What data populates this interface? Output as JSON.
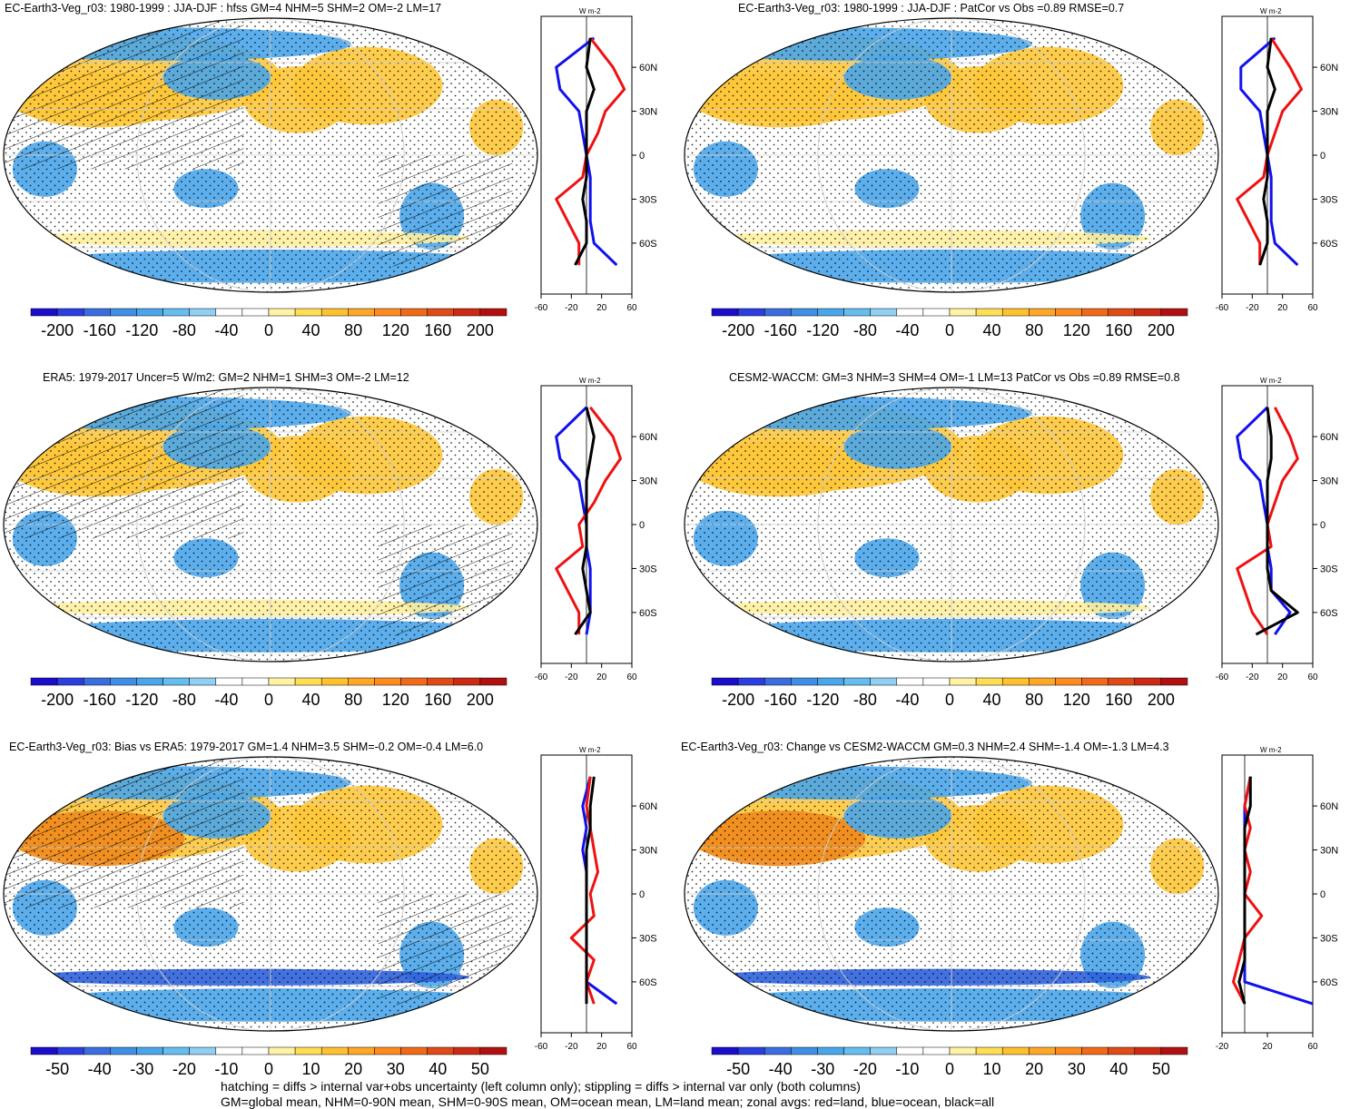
{
  "footer": {
    "line1": "hatching = diffs > internal var+obs uncertainty (left column only); stippling = diffs > internal var only (both columns)",
    "line2": "GM=global mean, NHM=0-90N mean, SHM=0-90S mean, OM=ocean mean, LM=land mean; zonal avgs: red=land, blue=ocean, black=all"
  },
  "profile_units": "W m-2",
  "lat_ticks": [
    "60N",
    "30N",
    "0",
    "30S",
    "60S"
  ],
  "colorbar_large": [
    "-200",
    "-160",
    "-120",
    "-80",
    "-40",
    "0",
    "40",
    "80",
    "120",
    "160",
    "200"
  ],
  "colorbar_small": [
    "-50",
    "-40",
    "-30",
    "-20",
    "-10",
    "0",
    "10",
    "20",
    "30",
    "40",
    "50"
  ],
  "colorbar_colors": [
    "#1a0dcc",
    "#2b3ee0",
    "#3a6ee0",
    "#3f8fe6",
    "#4aa6ea",
    "#66bdef",
    "#8fd0f3",
    "#ffffff",
    "#ffffff",
    "#fff3a6",
    "#ffdd55",
    "#ffc22e",
    "#ffa726",
    "#ff8a1f",
    "#f06a1a",
    "#e04a16",
    "#cc2a12",
    "#b21010"
  ],
  "colors": {
    "land": "#ee1111",
    "ocean": "#1111ee",
    "all": "#000000",
    "neg": "#4aa6ea",
    "pos": "#ffc83a",
    "posStrong": "#f08a1c",
    "negStrong": "#2f62dd"
  },
  "panels": [
    {
      "title": "EC-Earth3-Veg_r03: 1980-1999 : JJA-DJF : hfss GM=4 NHM=5 SHM=2 OM=-2 LM=17",
      "xticks": [
        "-60",
        "-20",
        "20",
        "60"
      ],
      "cbar": "large",
      "hatch": true,
      "level": 2
    },
    {
      "title": "EC-Earth3-Veg_r03: 1980-1999 : JJA-DJF : PatCor vs Obs =0.89 RMSE=0.7",
      "xticks": [
        "-60",
        "-20",
        "20",
        "60"
      ],
      "cbar": "large",
      "hatch": false,
      "level": 2
    },
    {
      "title": "ERA5: 1979-2017 Uncer=5 W/m2: GM=2 NHM=1 SHM=3 OM=-2 LM=12",
      "xticks": [
        "-60",
        "-20",
        "20",
        "60"
      ],
      "cbar": "large",
      "hatch": true,
      "level": 2
    },
    {
      "title": "CESM2-WACCM: GM=3 NHM=3 SHM=4 OM=-1 LM=13 PatCor vs Obs =0.89 RMSE=0.8",
      "xticks": [
        "-60",
        "-20",
        "20",
        "60"
      ],
      "cbar": "large",
      "hatch": false,
      "level": 2
    },
    {
      "title": "EC-Earth3-Veg_r03: Bias vs ERA5: 1979-2017 GM=1.4 NHM=3.5 SHM=-0.2 OM=-0.4 LM=6.0",
      "xticks": [
        "-60",
        "-20",
        "20",
        "60"
      ],
      "cbar": "small",
      "hatch": true,
      "level": 3
    },
    {
      "title": "EC-Earth3-Veg_r03: Change vs CESM2-WACCM GM=0.3 NHM=2.4 SHM=-1.4 OM=-1.3 LM=4.3",
      "xticks": [
        "-20",
        "20",
        "60"
      ],
      "cbar": "small",
      "hatch": false,
      "level": 3
    }
  ],
  "chart_data": [
    {
      "type": "heatmap",
      "title": "EC-Earth3-Veg_r03: 1980-1999 : JJA-DJF : hfss GM=4 NHM=5 SHM=2 OM=-2 LM=17",
      "variable": "hfss JJA-DJF",
      "units": "W m-2",
      "colorbar_range": [
        -200,
        200
      ],
      "global_mean": 4,
      "nhm": 5,
      "shm": 2,
      "om": -2,
      "lm": 17,
      "zonal_mean_profile": {
        "xlim": [
          -60,
          60
        ],
        "lat": [
          80,
          60,
          45,
          30,
          15,
          0,
          -15,
          -30,
          -45,
          -60,
          -75
        ],
        "land": [
          5,
          35,
          50,
          25,
          15,
          0,
          -5,
          -40,
          null,
          -10,
          -10
        ],
        "ocean": [
          10,
          -40,
          -35,
          -10,
          -5,
          0,
          5,
          5,
          5,
          10,
          40
        ],
        "all": [
          5,
          0,
          10,
          0,
          0,
          0,
          0,
          -5,
          0,
          0,
          -15
        ]
      }
    },
    {
      "type": "heatmap",
      "title": "EC-Earth3-Veg_r03: 1980-1999 : JJA-DJF : PatCor vs Obs =0.89 RMSE=0.7",
      "pattern_correlation": 0.89,
      "rmse": 0.7,
      "colorbar_range": [
        -200,
        200
      ],
      "zonal_mean_profile": {
        "xlim": [
          -60,
          60
        ],
        "lat": [
          80,
          60,
          45,
          30,
          15,
          0,
          -15,
          -30,
          -45,
          -60,
          -75
        ],
        "land": [
          5,
          30,
          45,
          20,
          10,
          0,
          -5,
          -40,
          null,
          -10,
          -10
        ],
        "ocean": [
          10,
          -35,
          -35,
          -10,
          -5,
          0,
          5,
          5,
          5,
          10,
          40
        ],
        "all": [
          5,
          0,
          10,
          0,
          0,
          0,
          0,
          -5,
          0,
          0,
          -10
        ]
      }
    },
    {
      "type": "heatmap",
      "title": "ERA5: 1979-2017 Uncer=5 W/m2: GM=2 NHM=1 SHM=3 OM=-2 LM=12",
      "uncertainty": "5 W/m2",
      "global_mean": 2,
      "nhm": 1,
      "shm": 3,
      "om": -2,
      "lm": 12,
      "colorbar_range": [
        -200,
        200
      ],
      "zonal_mean_profile": {
        "xlim": [
          -60,
          60
        ],
        "lat": [
          80,
          60,
          45,
          30,
          15,
          0,
          -15,
          -30,
          -45,
          -60,
          -75
        ],
        "land": [
          5,
          35,
          45,
          25,
          10,
          -10,
          -5,
          -40,
          null,
          -10,
          -10
        ],
        "ocean": [
          0,
          -40,
          -35,
          -10,
          -5,
          0,
          0,
          5,
          5,
          5,
          0
        ],
        "all": [
          0,
          10,
          5,
          0,
          0,
          0,
          0,
          -5,
          0,
          5,
          -15
        ]
      }
    },
    {
      "type": "heatmap",
      "title": "CESM2-WACCM: GM=3 NHM=3 SHM=4 OM=-1 LM=13 PatCor vs Obs =0.89 RMSE=0.8",
      "global_mean": 3,
      "nhm": 3,
      "shm": 4,
      "om": -1,
      "lm": 13,
      "pattern_correlation": 0.89,
      "rmse": 0.8,
      "colorbar_range": [
        -200,
        200
      ],
      "zonal_mean_profile": {
        "xlim": [
          -60,
          60
        ],
        "lat": [
          80,
          60,
          45,
          30,
          15,
          0,
          -15,
          -30,
          -45,
          -60,
          -75
        ],
        "land": [
          10,
          30,
          40,
          20,
          10,
          0,
          5,
          -40,
          null,
          -20,
          0
        ],
        "ocean": [
          0,
          -40,
          -35,
          -10,
          -5,
          0,
          0,
          5,
          5,
          30,
          10
        ],
        "all": [
          0,
          5,
          5,
          0,
          0,
          0,
          0,
          0,
          5,
          40,
          -15
        ]
      }
    },
    {
      "type": "heatmap",
      "title": "EC-Earth3-Veg_r03: Bias vs ERA5: 1979-2017 GM=1.4 NHM=3.5 SHM=-0.2 OM=-0.4 LM=6.0",
      "global_mean": 1.4,
      "nhm": 3.5,
      "shm": -0.2,
      "om": -0.4,
      "lm": 6.0,
      "colorbar_range": [
        -50,
        50
      ],
      "zonal_mean_profile": {
        "xlim": [
          -60,
          60
        ],
        "lat": [
          80,
          60,
          45,
          30,
          15,
          0,
          -15,
          -30,
          -45,
          -60,
          -75
        ],
        "land": [
          5,
          0,
          5,
          10,
          15,
          5,
          10,
          -20,
          10,
          0,
          10
        ],
        "ocean": [
          5,
          -5,
          0,
          -5,
          0,
          0,
          0,
          0,
          0,
          0,
          40
        ],
        "all": [
          10,
          5,
          5,
          0,
          0,
          0,
          0,
          0,
          0,
          0,
          0
        ]
      }
    },
    {
      "type": "heatmap",
      "title": "EC-Earth3-Veg_r03: Change vs CESM2-WACCM GM=0.3 NHM=2.4 SHM=-1.4 OM=-1.3 LM=4.3",
      "global_mean": 0.3,
      "nhm": 2.4,
      "shm": -1.4,
      "om": -1.3,
      "lm": 4.3,
      "colorbar_range": [
        -50,
        50
      ],
      "zonal_mean_profile": {
        "xlim": [
          -20,
          60
        ],
        "lat": [
          80,
          60,
          45,
          30,
          15,
          0,
          -15,
          -30,
          -45,
          -60,
          -75
        ],
        "land": [
          5,
          0,
          5,
          0,
          5,
          0,
          15,
          0,
          -5,
          -10,
          0
        ],
        "ocean": [
          5,
          0,
          0,
          0,
          0,
          0,
          0,
          0,
          0,
          0,
          60
        ],
        "all": [
          5,
          5,
          0,
          0,
          0,
          0,
          0,
          0,
          0,
          -5,
          0
        ]
      }
    }
  ]
}
